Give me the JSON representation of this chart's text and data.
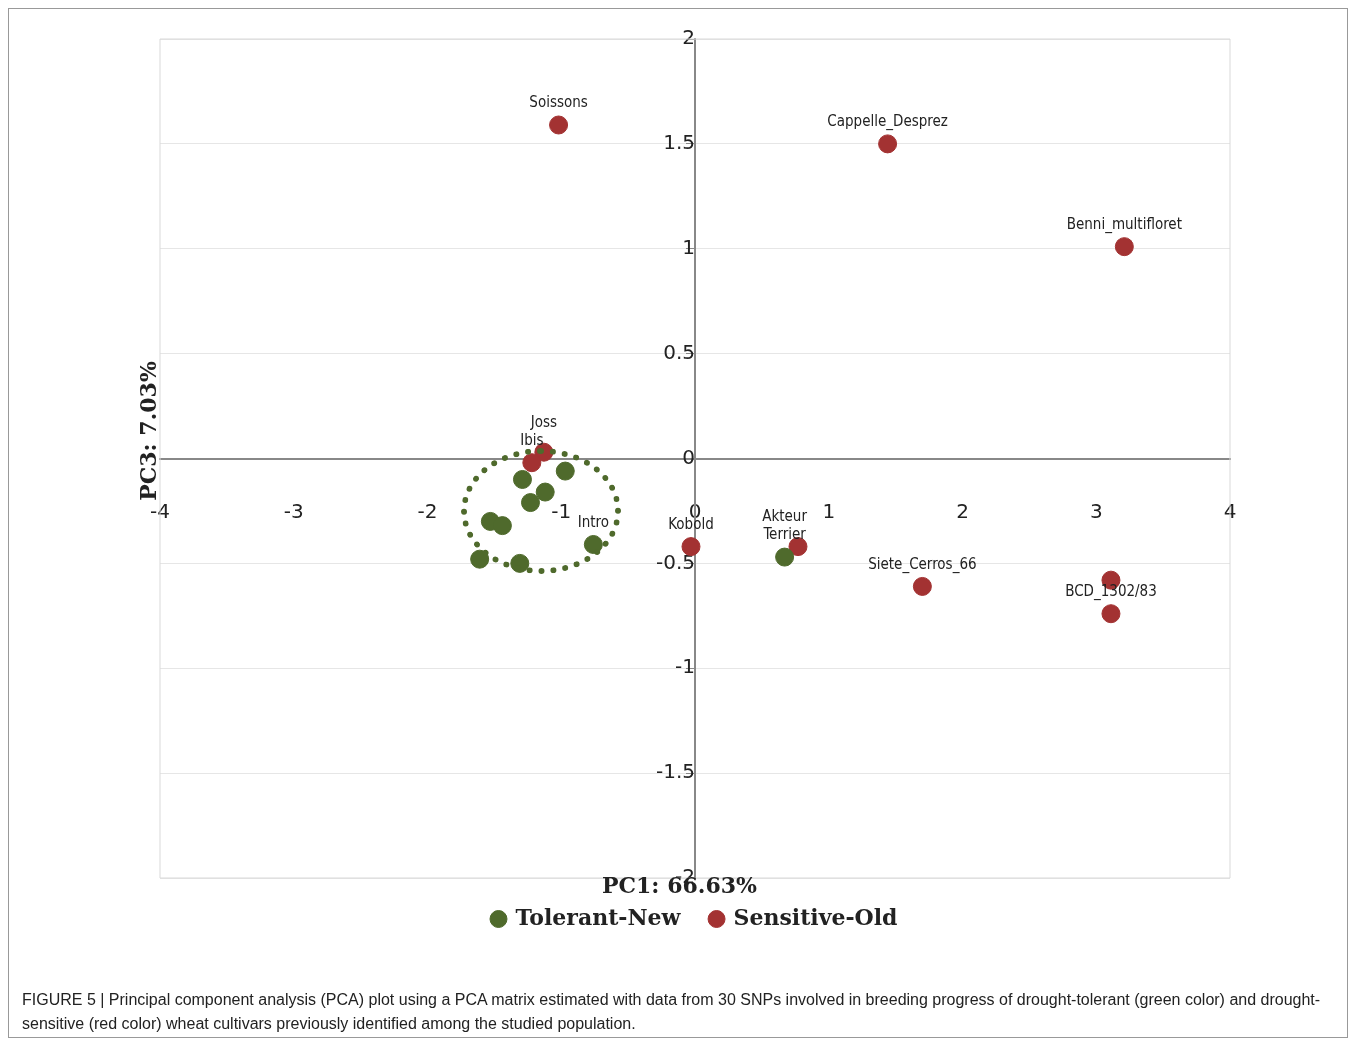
{
  "chart_data": {
    "type": "scatter",
    "xlabel": "PC1: 66.63%",
    "ylabel": "PC3: 7.03%",
    "xlim": [
      -4,
      4
    ],
    "xticks": [
      -4,
      -3,
      -2,
      -1,
      0,
      1,
      2,
      3,
      4
    ],
    "ylim": [
      -2,
      2
    ],
    "yticks": [
      -2,
      -1.5,
      -1,
      -0.5,
      0,
      0.5,
      1,
      1.5,
      2
    ],
    "grid": "y",
    "legend": "bottom",
    "marker": "circle",
    "series": [
      {
        "name": "Tolerant-New",
        "color": "#4f6a2c",
        "x": [
          -0.97,
          -1.29,
          -1.12,
          -1.23,
          -1.53,
          -1.44,
          -0.76,
          0.67,
          -1.61,
          -1.31
        ],
        "values": [
          -0.06,
          -0.1,
          -0.16,
          -0.21,
          -0.3,
          -0.32,
          -0.41,
          -0.47,
          -0.48,
          -0.5
        ]
      },
      {
        "name": "Sensitive-Old",
        "color": "#a33232",
        "x": [
          -1.02,
          1.44,
          3.21,
          -0.03,
          0.77,
          1.7,
          3.11,
          3.11,
          -1.13,
          -1.22
        ],
        "values": [
          1.59,
          1.5,
          1.01,
          -0.42,
          -0.42,
          -0.61,
          -0.58,
          -0.74,
          0.03,
          -0.02
        ]
      }
    ],
    "annotations": [
      {
        "text": "Soissons",
        "x": -1.02,
        "y": 1.59
      },
      {
        "text": "Cappelle_Desprez",
        "x": 1.44,
        "y": 1.5
      },
      {
        "text": "Benni_multifloret",
        "x": 3.21,
        "y": 1.01
      },
      {
        "text": "Kobold",
        "x": -0.03,
        "y": -0.42
      },
      {
        "text": "Siete_Cerros_66",
        "x": 1.7,
        "y": -0.61
      },
      {
        "text": "BCD_1302/83",
        "x": 3.11,
        "y": -0.74
      },
      {
        "text": "Ibis",
        "x": -1.22,
        "y": -0.02
      },
      {
        "text": "Joss",
        "x": -1.13,
        "y": 0.03
      },
      {
        "text": "Intro",
        "x": -0.76,
        "y": -0.41
      },
      {
        "text": "Terrier",
        "x": 0.67,
        "y": -0.47
      },
      {
        "text": "Akteur",
        "x": 0.67,
        "y": -0.47
      },
      "FIGURE 5 | Principal component analysis (PCA) plot using a PCA matrix estimated with data from 30 SNPs involved in breeding progress of drought-tolerant (green color) and drought-sensitive (red color) wheat cultivars previously identified among the studied population."
    ]
  }
}
